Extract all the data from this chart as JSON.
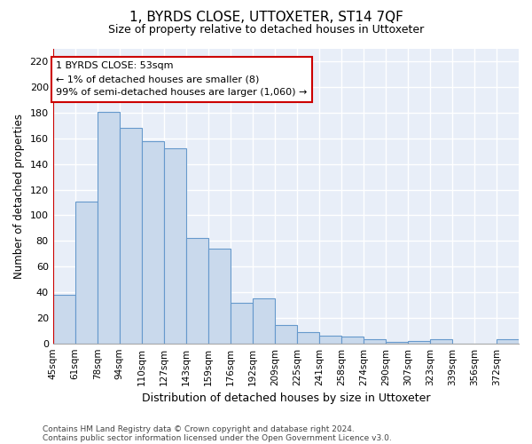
{
  "title": "1, BYRDS CLOSE, UTTOXETER, ST14 7QF",
  "subtitle": "Size of property relative to detached houses in Uttoxeter",
  "xlabel": "Distribution of detached houses by size in Uttoxeter",
  "ylabel": "Number of detached properties",
  "categories": [
    "45sqm",
    "61sqm",
    "78sqm",
    "94sqm",
    "110sqm",
    "127sqm",
    "143sqm",
    "159sqm",
    "176sqm",
    "192sqm",
    "209sqm",
    "225sqm",
    "241sqm",
    "258sqm",
    "274sqm",
    "290sqm",
    "307sqm",
    "323sqm",
    "339sqm",
    "356sqm",
    "372sqm"
  ],
  "counts": [
    38,
    111,
    181,
    168,
    158,
    152,
    82,
    74,
    32,
    35,
    14,
    9,
    6,
    5,
    3,
    1,
    2,
    3,
    0,
    0,
    3
  ],
  "bar_color": "#c9d9ec",
  "bar_edge_color": "#6699cc",
  "highlight_color": "#cc0000",
  "annotation_text": "1 BYRDS CLOSE: 53sqm\n← 1% of detached houses are smaller (8)\n99% of semi-detached houses are larger (1,060) →",
  "ylim": [
    0,
    230
  ],
  "yticks": [
    0,
    20,
    40,
    60,
    80,
    100,
    120,
    140,
    160,
    180,
    200,
    220
  ],
  "footer_line1": "Contains HM Land Registry data © Crown copyright and database right 2024.",
  "footer_line2": "Contains public sector information licensed under the Open Government Licence v3.0.",
  "background_color": "#e8eef8",
  "grid_color": "#ffffff",
  "highlight_bar_index": 0,
  "fig_width": 6.0,
  "fig_height": 5.0,
  "dpi": 100
}
